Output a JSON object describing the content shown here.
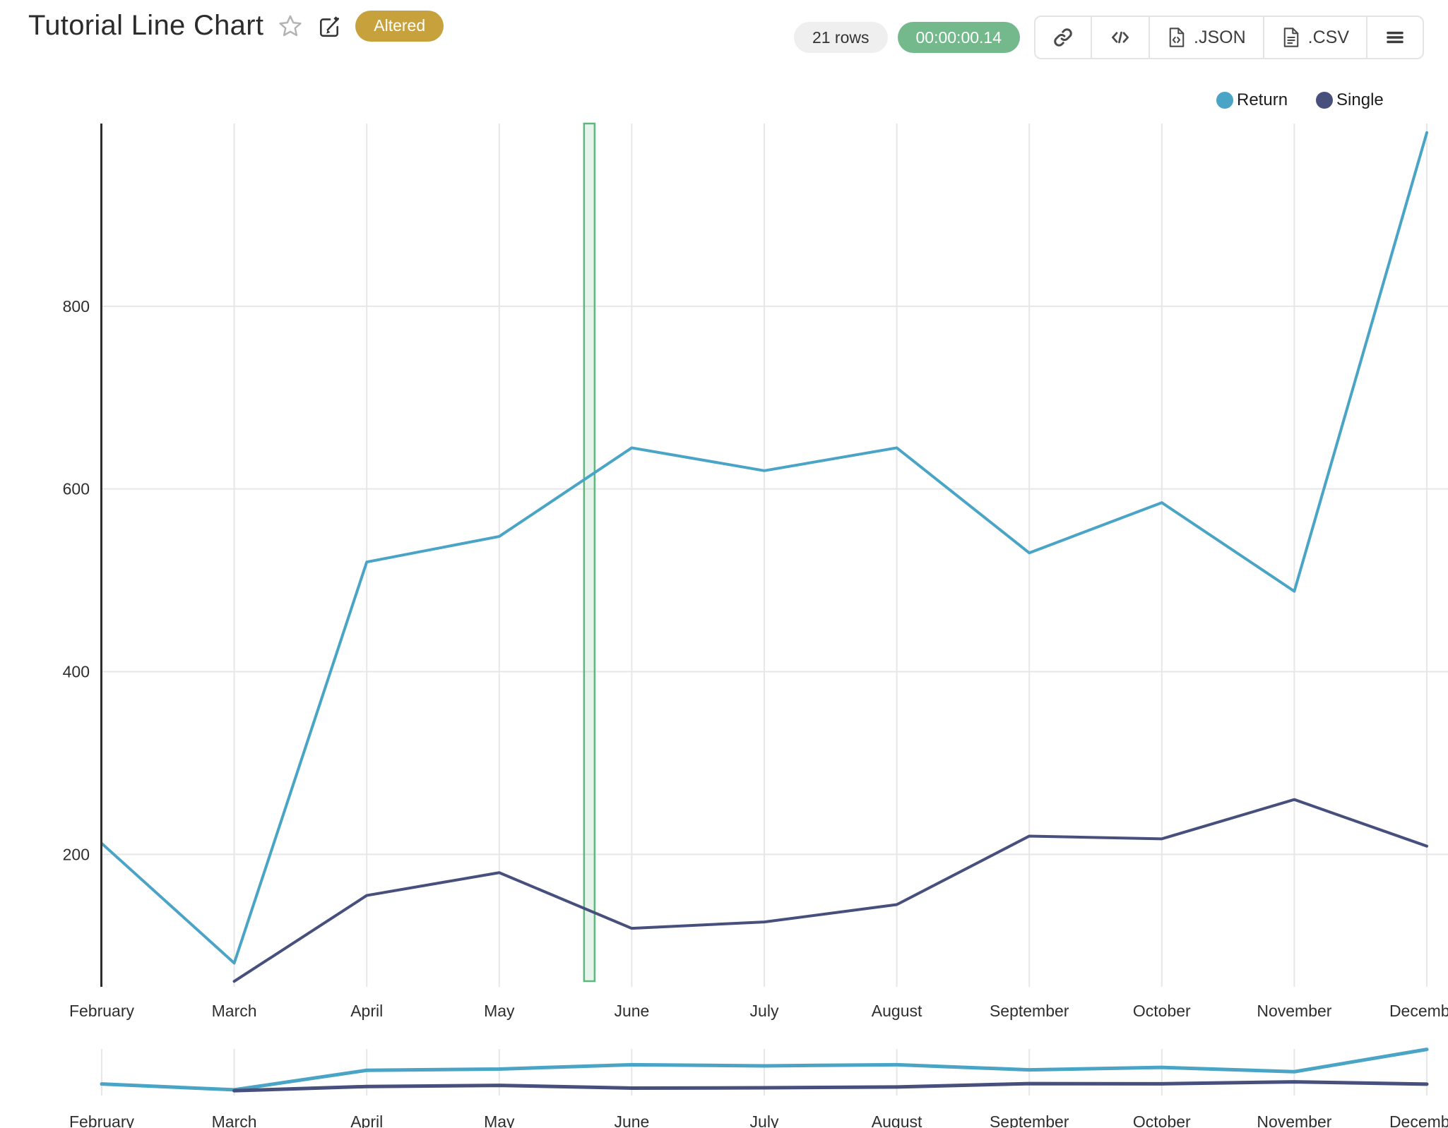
{
  "header": {
    "title": "Tutorial Line Chart",
    "altered_badge": "Altered",
    "rows_badge": "21 rows",
    "timer_badge": "00:00:00.14",
    "export_json_label": ".JSON",
    "export_csv_label": ".CSV",
    "icons": [
      "star-icon",
      "edit-pencil-icon",
      "link-icon",
      "embed-code-icon",
      "json-file-icon",
      "csv-file-icon",
      "menu-icon"
    ]
  },
  "colors": {
    "return_series": "#4aa4c6",
    "single_series": "#474f7d",
    "selection_border": "#5eb87e",
    "selection_fill": "rgba(94,184,126,0.15)",
    "altered_badge_bg": "#c7a13b",
    "timer_badge_bg": "#74b98c",
    "rows_badge_bg": "#efefef",
    "grid": "#e7e7e7",
    "axis": "#2e2e2e",
    "tick_label": "#2f2f2f"
  },
  "chart_data": {
    "type": "line",
    "title": "Tutorial Line Chart",
    "categories": [
      "February",
      "March",
      "April",
      "May",
      "June",
      "July",
      "August",
      "September",
      "October",
      "November",
      "December"
    ],
    "series": [
      {
        "name": "Return",
        "color": "#4aa4c6",
        "values": [
          212,
          81,
          520,
          548,
          645,
          620,
          645,
          530,
          585,
          488,
          990
        ]
      },
      {
        "name": "Single",
        "color": "#474f7d",
        "values": [
          null,
          61,
          155,
          180,
          119,
          126,
          145,
          220,
          217,
          260,
          209
        ]
      }
    ],
    "yticks": [
      200,
      400,
      600,
      800
    ],
    "ylim": [
      55,
      1000
    ],
    "xlabel": "",
    "ylabel": "",
    "grid": true,
    "legend_position": "top-right",
    "selection_band": {
      "from_category_index": 3.64,
      "to_category_index": 3.72
    },
    "range_preview": {
      "enabled": true,
      "ylim": [
        0,
        1000
      ]
    }
  }
}
